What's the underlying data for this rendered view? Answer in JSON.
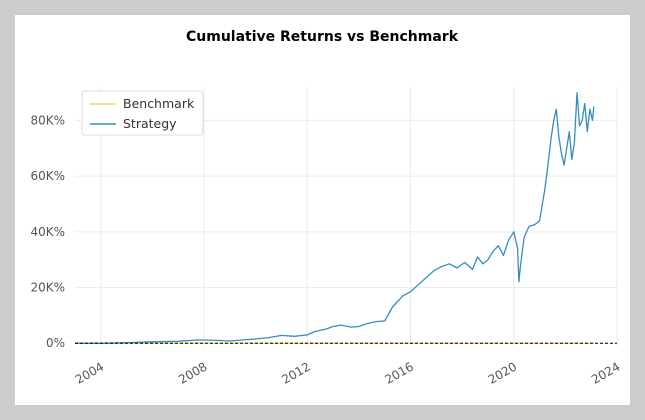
{
  "chart_data": {
    "type": "line",
    "title": "Cumulative Returns vs Benchmark",
    "xlabel": "",
    "ylabel": "",
    "xlim": [
      2003.0,
      2024.0
    ],
    "ylim": [
      -1000,
      92000
    ],
    "x_ticks": [
      2004,
      2008,
      2012,
      2016,
      2020,
      2024
    ],
    "x_tick_labels": [
      "2004",
      "2008",
      "2012",
      "2016",
      "2020",
      "2024"
    ],
    "y_ticks": [
      0,
      20000,
      40000,
      60000,
      80000
    ],
    "y_tick_labels": [
      "0%",
      "20K%",
      "40K%",
      "60K%",
      "80K%"
    ],
    "grid": true,
    "legend_position": "top-left",
    "colors": {
      "benchmark": "#f5d36b",
      "strategy": "#348dc1",
      "zero_line": "#000000"
    },
    "series": [
      {
        "name": "Benchmark",
        "x": [
          2003.0,
          2008.0,
          2012.0,
          2016.0,
          2020.0,
          2023.1
        ],
        "values": [
          0,
          0,
          0,
          0,
          0,
          0
        ]
      },
      {
        "name": "Strategy",
        "x": [
          2003.0,
          2004.0,
          2005.0,
          2006.0,
          2007.0,
          2007.8,
          2008.5,
          2009.0,
          2009.5,
          2010.0,
          2010.5,
          2011.0,
          2011.5,
          2012.0,
          2012.3,
          2012.7,
          2013.0,
          2013.3,
          2013.7,
          2014.0,
          2014.3,
          2014.7,
          2015.0,
          2015.3,
          2015.7,
          2016.0,
          2016.3,
          2016.6,
          2016.9,
          2017.2,
          2017.5,
          2017.8,
          2018.1,
          2018.4,
          2018.6,
          2018.8,
          2019.0,
          2019.2,
          2019.4,
          2019.6,
          2019.8,
          2020.0,
          2020.15,
          2020.2,
          2020.25,
          2020.4,
          2020.6,
          2020.8,
          2021.0,
          2021.2,
          2021.3,
          2021.45,
          2021.55,
          2021.65,
          2021.75,
          2021.85,
          2021.95,
          2022.05,
          2022.15,
          2022.25,
          2022.35,
          2022.45,
          2022.55,
          2022.65,
          2022.75,
          2022.85,
          2022.95,
          2023.05,
          2023.1
        ],
        "values": [
          0,
          0,
          200,
          500,
          700,
          1200,
          1000,
          800,
          1200,
          1500,
          2000,
          2800,
          2500,
          3000,
          4200,
          5000,
          6000,
          6500,
          5800,
          6000,
          7000,
          7800,
          8000,
          13000,
          17000,
          18500,
          21000,
          23500,
          26000,
          27500,
          28500,
          27000,
          29000,
          26500,
          31000,
          28500,
          30000,
          33000,
          35000,
          31500,
          37000,
          40000,
          34000,
          22000,
          27000,
          38000,
          42000,
          42500,
          44000,
          55000,
          62000,
          74000,
          80000,
          84000,
          74000,
          68000,
          64000,
          70000,
          76000,
          66000,
          72000,
          90000,
          78000,
          80000,
          86000,
          76000,
          84000,
          80000,
          85000
        ]
      }
    ]
  }
}
